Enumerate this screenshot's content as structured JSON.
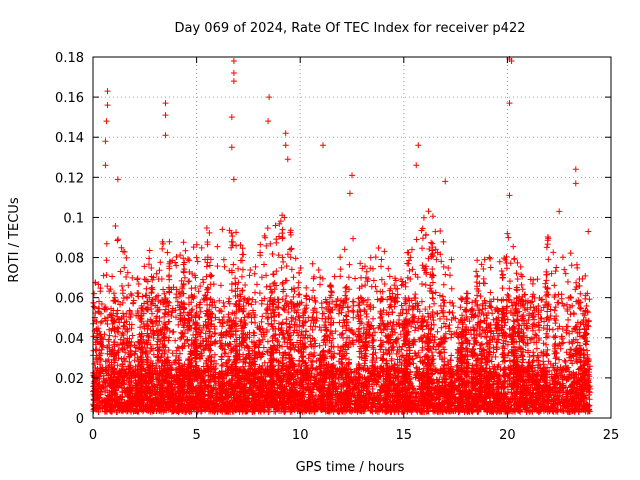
{
  "chart_data": {
    "type": "scatter",
    "title": "Day 069 of 2024, Rate Of TEC Index for receiver p422",
    "xlabel": "GPS time / hours",
    "ylabel": "ROTI / TECUs",
    "xlim": [
      0,
      25
    ],
    "ylim": [
      0,
      0.18
    ],
    "x_ticks": [
      0,
      5,
      10,
      15,
      20,
      25
    ],
    "x_tick_labels": [
      "0",
      "5",
      "10",
      "15",
      "20",
      "25"
    ],
    "y_ticks": [
      0,
      0.02,
      0.04,
      0.06,
      0.08,
      0.1,
      0.12,
      0.14,
      0.16,
      0.18
    ],
    "y_tick_labels": [
      "0",
      "0.02",
      "0.04",
      "0.06",
      "0.08",
      "0.1",
      "0.12",
      "0.14",
      "0.16",
      "0.18"
    ],
    "grid": true,
    "marker": "+",
    "color": "#ff0000",
    "point_count_estimate": 6000,
    "x_data_range": [
      0,
      24
    ],
    "bulk_range": [
      0.003,
      0.06
    ],
    "notable_points": [
      {
        "x": 0.7,
        "y": 0.163
      },
      {
        "x": 0.7,
        "y": 0.156
      },
      {
        "x": 0.65,
        "y": 0.148
      },
      {
        "x": 0.6,
        "y": 0.138
      },
      {
        "x": 0.6,
        "y": 0.126
      },
      {
        "x": 1.2,
        "y": 0.119
      },
      {
        "x": 3.5,
        "y": 0.157
      },
      {
        "x": 3.5,
        "y": 0.151
      },
      {
        "x": 3.5,
        "y": 0.141
      },
      {
        "x": 6.8,
        "y": 0.178
      },
      {
        "x": 6.8,
        "y": 0.172
      },
      {
        "x": 6.8,
        "y": 0.168
      },
      {
        "x": 6.7,
        "y": 0.15
      },
      {
        "x": 6.7,
        "y": 0.135
      },
      {
        "x": 6.8,
        "y": 0.119
      },
      {
        "x": 8.5,
        "y": 0.16
      },
      {
        "x": 8.45,
        "y": 0.148
      },
      {
        "x": 9.3,
        "y": 0.142
      },
      {
        "x": 9.3,
        "y": 0.136
      },
      {
        "x": 9.4,
        "y": 0.129
      },
      {
        "x": 11.1,
        "y": 0.136
      },
      {
        "x": 12.5,
        "y": 0.121
      },
      {
        "x": 12.4,
        "y": 0.112
      },
      {
        "x": 15.7,
        "y": 0.136
      },
      {
        "x": 15.6,
        "y": 0.126
      },
      {
        "x": 17.0,
        "y": 0.118
      },
      {
        "x": 20.1,
        "y": 0.179
      },
      {
        "x": 20.2,
        "y": 0.178
      },
      {
        "x": 20.1,
        "y": 0.157
      },
      {
        "x": 20.1,
        "y": 0.111
      },
      {
        "x": 22.5,
        "y": 0.103
      },
      {
        "x": 23.3,
        "y": 0.124
      },
      {
        "x": 23.3,
        "y": 0.117
      },
      {
        "x": 23.9,
        "y": 0.093
      }
    ],
    "envelope": [
      {
        "x": 0,
        "y": 0.065
      },
      {
        "x": 0.5,
        "y": 0.09
      },
      {
        "x": 1,
        "y": 0.1
      },
      {
        "x": 1.5,
        "y": 0.085
      },
      {
        "x": 2,
        "y": 0.07
      },
      {
        "x": 2.5,
        "y": 0.085
      },
      {
        "x": 3,
        "y": 0.09
      },
      {
        "x": 3.5,
        "y": 0.095
      },
      {
        "x": 4,
        "y": 0.09
      },
      {
        "x": 4.5,
        "y": 0.095
      },
      {
        "x": 5,
        "y": 0.09
      },
      {
        "x": 5.5,
        "y": 0.09
      },
      {
        "x": 6,
        "y": 0.1
      },
      {
        "x": 6.5,
        "y": 0.1
      },
      {
        "x": 7,
        "y": 0.095
      },
      {
        "x": 7.5,
        "y": 0.075
      },
      {
        "x": 8,
        "y": 0.09
      },
      {
        "x": 8.5,
        "y": 0.1
      },
      {
        "x": 9,
        "y": 0.11
      },
      {
        "x": 9.5,
        "y": 0.1
      },
      {
        "x": 10,
        "y": 0.075
      },
      {
        "x": 10.5,
        "y": 0.078
      },
      {
        "x": 11,
        "y": 0.075
      },
      {
        "x": 11.5,
        "y": 0.07
      },
      {
        "x": 12,
        "y": 0.085
      },
      {
        "x": 12.5,
        "y": 0.1
      },
      {
        "x": 13,
        "y": 0.08
      },
      {
        "x": 13.5,
        "y": 0.08
      },
      {
        "x": 14,
        "y": 0.09
      },
      {
        "x": 14.5,
        "y": 0.075
      },
      {
        "x": 15,
        "y": 0.07
      },
      {
        "x": 15.5,
        "y": 0.095
      },
      {
        "x": 16,
        "y": 0.105
      },
      {
        "x": 16.5,
        "y": 0.1
      },
      {
        "x": 17,
        "y": 0.095
      },
      {
        "x": 17.5,
        "y": 0.06
      },
      {
        "x": 18,
        "y": 0.06
      },
      {
        "x": 18.5,
        "y": 0.09
      },
      {
        "x": 19,
        "y": 0.09
      },
      {
        "x": 19.5,
        "y": 0.08
      },
      {
        "x": 20,
        "y": 0.095
      },
      {
        "x": 20.5,
        "y": 0.08
      },
      {
        "x": 21,
        "y": 0.07
      },
      {
        "x": 21.5,
        "y": 0.07
      },
      {
        "x": 22,
        "y": 0.09
      },
      {
        "x": 22.5,
        "y": 0.08
      },
      {
        "x": 23,
        "y": 0.09
      },
      {
        "x": 23.5,
        "y": 0.08
      },
      {
        "x": 24,
        "y": 0.075
      }
    ]
  }
}
